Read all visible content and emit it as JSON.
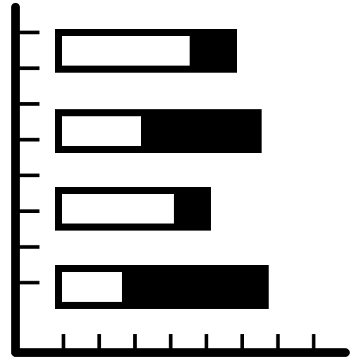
{
  "icon": {
    "name": "horizontal-stacked-bar-chart-icon",
    "foreground": "#000000",
    "background": "#ffffff",
    "bars": [
      {
        "fill_fraction": 0.76
      },
      {
        "fill_fraction": 0.41
      },
      {
        "fill_fraction": 0.79
      },
      {
        "fill_fraction": 0.3
      }
    ],
    "y_tick_count": 8,
    "x_tick_count": 8
  }
}
